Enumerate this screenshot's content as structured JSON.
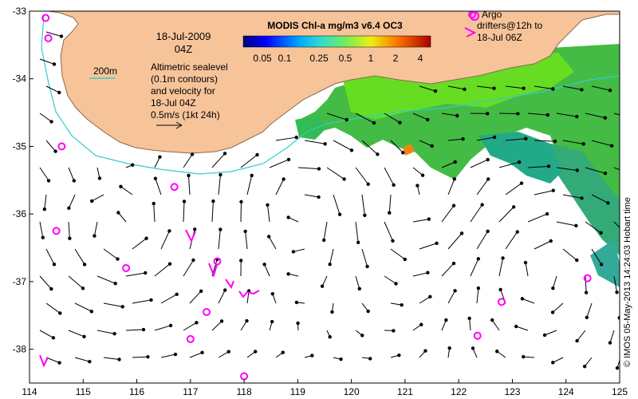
{
  "date": "18-Jul-2009",
  "time": "04Z",
  "colorbar": {
    "title": "MODIS Chl-a mg/m3 v6.4 OC3",
    "ticks": [
      "0.05",
      "0.1",
      "0.25",
      "0.5",
      "1",
      "2",
      "4"
    ]
  },
  "legend": {
    "isobath_label": "200m",
    "sealevel_lines": [
      "Altimetric sealevel",
      "(0.1m contours)",
      "and velocity for",
      "18-Jul 04Z"
    ],
    "velocity_scale": "0.5m/s (1kt 24h)",
    "argo_lines": [
      "Argo",
      "drifters@12h to",
      "18-Jul 06Z"
    ]
  },
  "credit": "© IMOS 05-May-2013 14:24:03 Hobart time",
  "axes": {
    "lon_ticks": [
      "114",
      "115",
      "116",
      "117",
      "118",
      "119",
      "120",
      "121",
      "122",
      "123",
      "124",
      "125"
    ],
    "lat_ticks": [
      "-33",
      "-34",
      "-35",
      "-36",
      "-37",
      "-38"
    ]
  },
  "colors": {
    "land": "#f7c49a",
    "isobath": "#33cccc",
    "argo": "#ff00ff",
    "chl_high": "#55cc22",
    "chl_mid": "#22aa55",
    "chl_low": "#33aa99"
  },
  "argo_floats": [
    {
      "lon": 114.3,
      "lat": -33.1
    },
    {
      "lon": 114.35,
      "lat": -33.4
    },
    {
      "lon": 114.6,
      "lat": -35.0
    },
    {
      "lon": 114.5,
      "lat": -36.25
    },
    {
      "lon": 115.8,
      "lat": -36.8
    },
    {
      "lon": 116.7,
      "lat": -35.6
    },
    {
      "lon": 117.5,
      "lat": -36.7
    },
    {
      "lon": 117.3,
      "lat": -37.45
    },
    {
      "lon": 117.0,
      "lat": -37.85
    },
    {
      "lon": 118.0,
      "lat": -38.4
    },
    {
      "lon": 122.35,
      "lat": -37.8
    },
    {
      "lon": 122.8,
      "lat": -37.3
    },
    {
      "lon": 124.4,
      "lat": -36.95
    },
    {
      "lon": 122.25,
      "lat": -33.05
    }
  ]
}
